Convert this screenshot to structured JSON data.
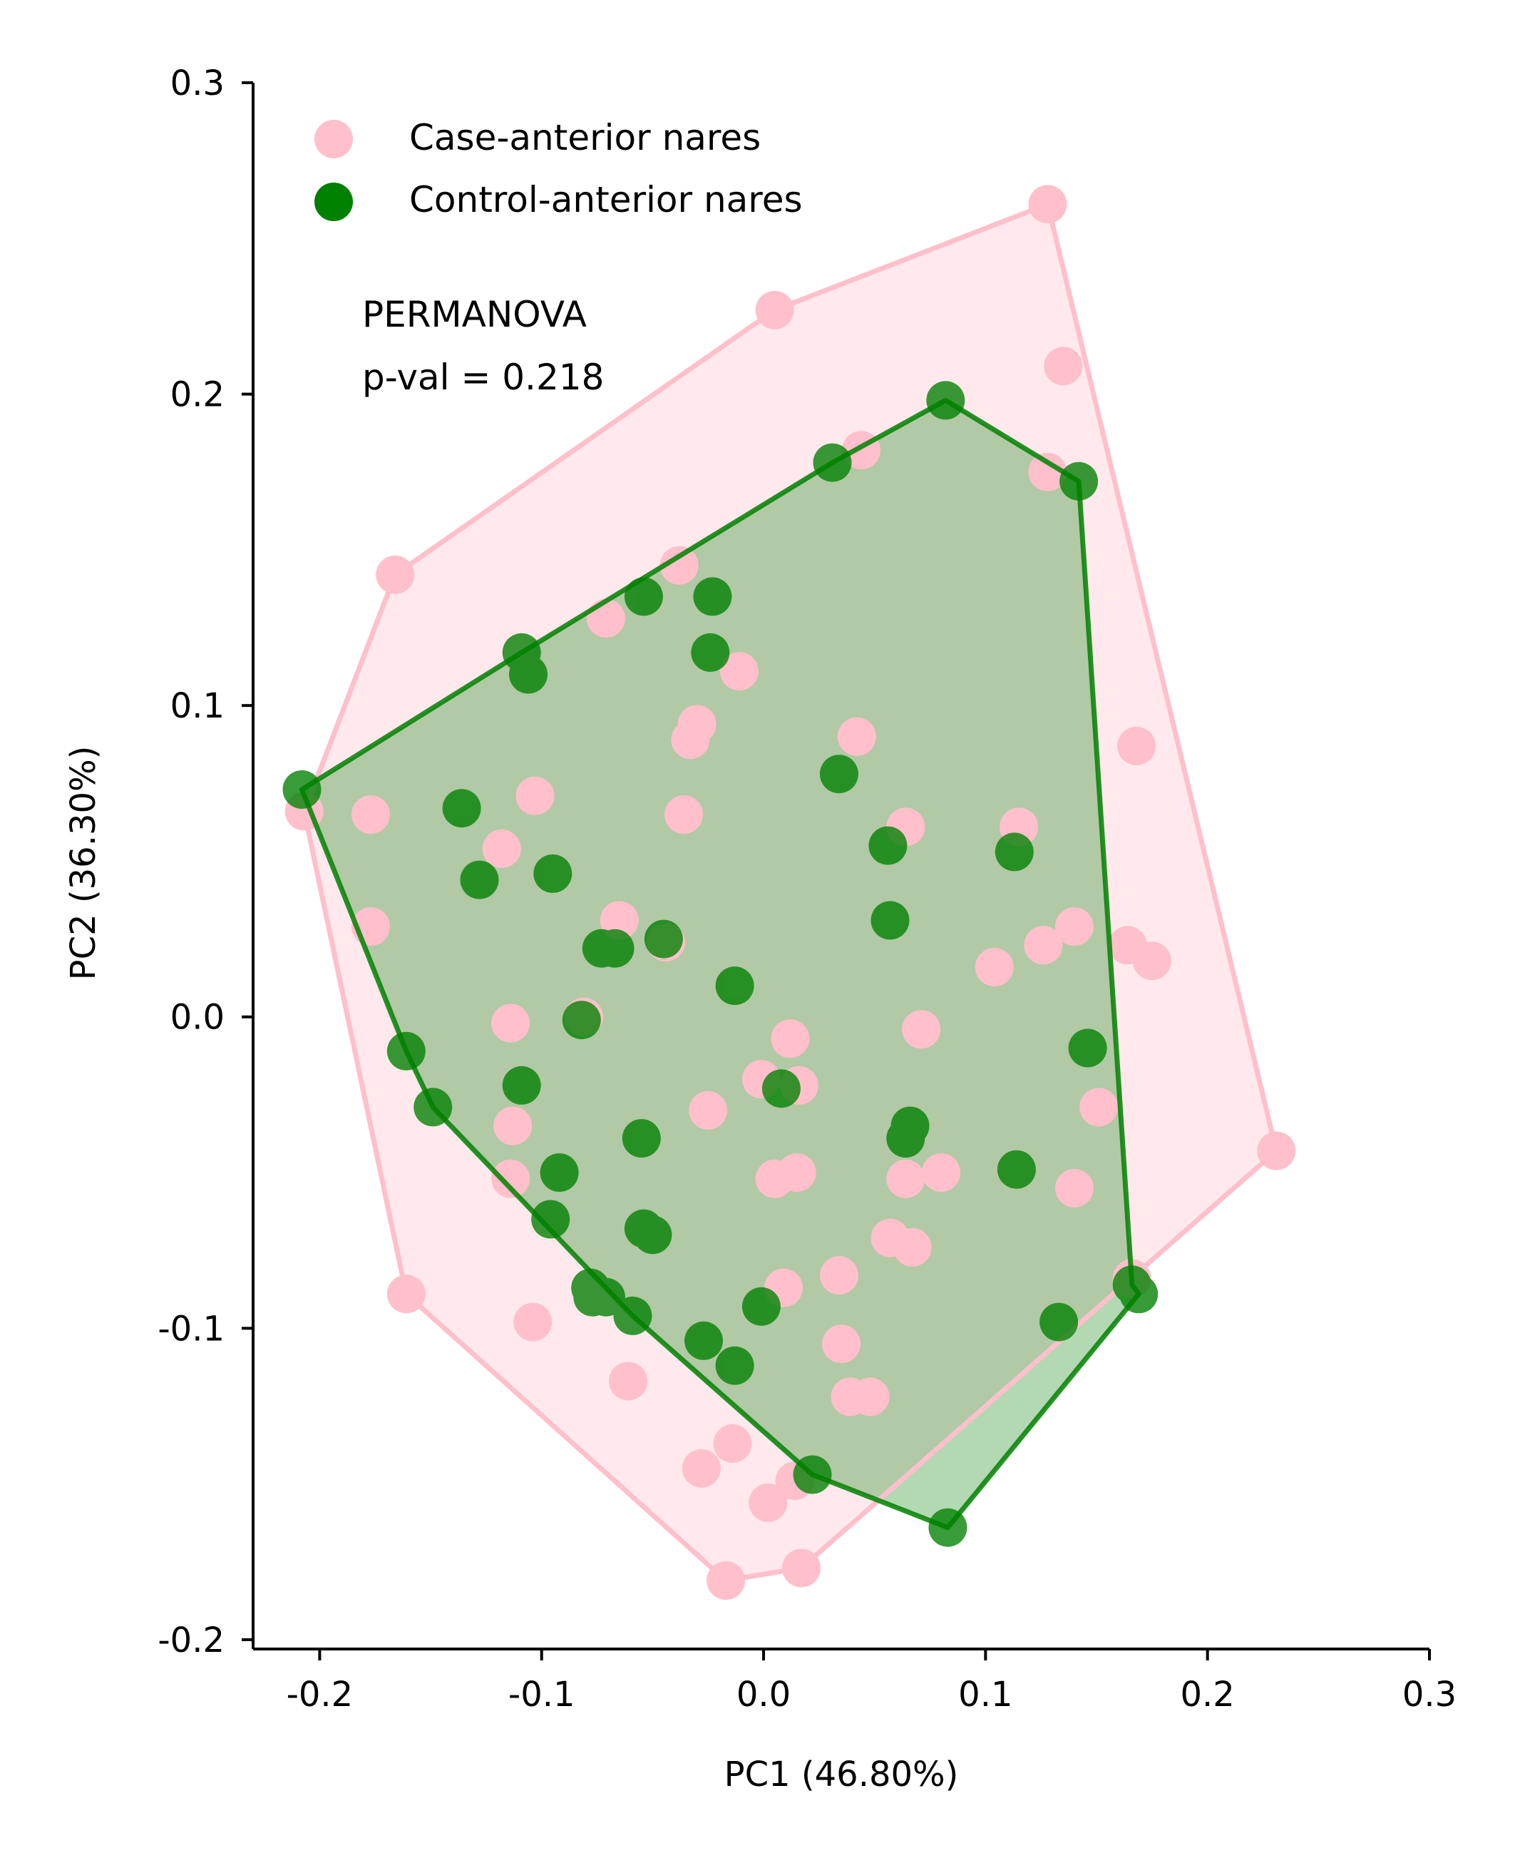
{
  "chart_data": {
    "type": "scatter",
    "xlabel": "PC1 (46.80%)",
    "ylabel": "PC2 (36.30%)",
    "xlim": [
      -0.23,
      0.3
    ],
    "ylim": [
      -0.203,
      0.3
    ],
    "xticks": [
      -0.2,
      -0.1,
      0.0,
      0.1,
      0.2,
      0.3
    ],
    "xtick_labels": [
      "-0.2",
      "-0.1",
      "0.0",
      "0.1",
      "0.2",
      "0.3"
    ],
    "yticks": [
      -0.2,
      -0.1,
      0.0,
      0.1,
      0.2,
      0.3
    ],
    "ytick_labels": [
      "-0.2",
      "-0.1",
      "0.0",
      "0.1",
      "0.2",
      "0.3"
    ],
    "legend_position": "top-left",
    "grid": false,
    "annotation": [
      "PERMANOVA",
      "p-val = 0.218"
    ],
    "series": [
      {
        "name": "Case-anterior nares",
        "color": "#FFC0CB",
        "hull_fill": "#FFC0CB",
        "hull_fill_opacity": 0.35,
        "points": [
          [
            0.128,
            0.261
          ],
          [
            0.005,
            0.227
          ],
          [
            0.135,
            0.209
          ],
          [
            -0.166,
            0.142
          ],
          [
            0.044,
            0.182
          ],
          [
            0.128,
            0.175
          ],
          [
            -0.038,
            0.145
          ],
          [
            -0.071,
            0.128
          ],
          [
            -0.011,
            0.111
          ],
          [
            -0.03,
            0.094
          ],
          [
            -0.033,
            0.089
          ],
          [
            0.042,
            0.09
          ],
          [
            0.168,
            0.087
          ],
          [
            -0.103,
            0.071
          ],
          [
            -0.207,
            0.066
          ],
          [
            -0.177,
            0.065
          ],
          [
            -0.036,
            0.065
          ],
          [
            0.064,
            0.061
          ],
          [
            0.115,
            0.061
          ],
          [
            -0.118,
            0.054
          ],
          [
            -0.177,
            0.029
          ],
          [
            -0.065,
            0.031
          ],
          [
            0.14,
            0.029
          ],
          [
            0.164,
            0.023
          ],
          [
            0.175,
            0.018
          ],
          [
            -0.044,
            0.024
          ],
          [
            0.126,
            0.023
          ],
          [
            0.104,
            0.016
          ],
          [
            -0.114,
            -0.002
          ],
          [
            0.012,
            -0.007
          ],
          [
            0.071,
            -0.004
          ],
          [
            -0.081,
            0.0
          ],
          [
            -0.001,
            -0.02
          ],
          [
            0.016,
            -0.022
          ],
          [
            0.151,
            -0.029
          ],
          [
            -0.025,
            -0.03
          ],
          [
            -0.113,
            -0.035
          ],
          [
            0.231,
            -0.043
          ],
          [
            -0.114,
            -0.052
          ],
          [
            0.005,
            -0.052
          ],
          [
            0.015,
            -0.05
          ],
          [
            0.064,
            -0.052
          ],
          [
            0.08,
            -0.05
          ],
          [
            0.14,
            -0.055
          ],
          [
            0.057,
            -0.071
          ],
          [
            0.067,
            -0.074
          ],
          [
            0.009,
            -0.087
          ],
          [
            0.034,
            -0.083
          ],
          [
            -0.161,
            -0.089
          ],
          [
            -0.104,
            -0.098
          ],
          [
            0.035,
            -0.105
          ],
          [
            -0.061,
            -0.117
          ],
          [
            0.039,
            -0.122
          ],
          [
            0.048,
            -0.122
          ],
          [
            -0.014,
            -0.137
          ],
          [
            -0.028,
            -0.145
          ],
          [
            0.014,
            -0.149
          ],
          [
            0.002,
            -0.156
          ],
          [
            -0.017,
            -0.181
          ],
          [
            0.017,
            -0.177
          ],
          [
            0.166,
            -0.084
          ]
        ],
        "hull": [
          [
            0.128,
            0.261
          ],
          [
            0.231,
            -0.043
          ],
          [
            0.017,
            -0.177
          ],
          [
            -0.017,
            -0.181
          ],
          [
            -0.161,
            -0.089
          ],
          [
            -0.207,
            0.066
          ],
          [
            -0.166,
            0.142
          ],
          [
            0.005,
            0.227
          ]
        ]
      },
      {
        "name": "Control-anterior nares",
        "color": "#008000",
        "hull_fill": "#008000",
        "hull_fill_opacity": 0.3,
        "points": [
          [
            0.082,
            0.198
          ],
          [
            0.031,
            0.178
          ],
          [
            0.142,
            0.172
          ],
          [
            -0.054,
            0.135
          ],
          [
            -0.023,
            0.135
          ],
          [
            -0.024,
            0.117
          ],
          [
            -0.109,
            0.117
          ],
          [
            -0.106,
            0.11
          ],
          [
            -0.208,
            0.073
          ],
          [
            0.034,
            0.078
          ],
          [
            -0.136,
            0.067
          ],
          [
            -0.128,
            0.044
          ],
          [
            -0.095,
            0.046
          ],
          [
            0.056,
            0.055
          ],
          [
            0.113,
            0.053
          ],
          [
            -0.073,
            0.022
          ],
          [
            -0.067,
            0.022
          ],
          [
            0.057,
            0.031
          ],
          [
            -0.045,
            0.025
          ],
          [
            -0.013,
            0.01
          ],
          [
            -0.082,
            -0.001
          ],
          [
            -0.161,
            -0.011
          ],
          [
            0.146,
            -0.01
          ],
          [
            -0.109,
            -0.022
          ],
          [
            0.008,
            -0.023
          ],
          [
            -0.149,
            -0.029
          ],
          [
            0.066,
            -0.035
          ],
          [
            0.064,
            -0.039
          ],
          [
            -0.055,
            -0.039
          ],
          [
            -0.092,
            -0.05
          ],
          [
            0.114,
            -0.049
          ],
          [
            -0.096,
            -0.065
          ],
          [
            -0.054,
            -0.068
          ],
          [
            -0.05,
            -0.07
          ],
          [
            -0.078,
            -0.087
          ],
          [
            -0.077,
            -0.09
          ],
          [
            -0.071,
            -0.09
          ],
          [
            -0.059,
            -0.096
          ],
          [
            0.133,
            -0.098
          ],
          [
            -0.027,
            -0.104
          ],
          [
            -0.013,
            -0.112
          ],
          [
            -0.001,
            -0.093
          ],
          [
            0.166,
            -0.086
          ],
          [
            0.169,
            -0.089
          ],
          [
            0.022,
            -0.147
          ],
          [
            0.083,
            -0.164
          ]
        ],
        "hull": [
          [
            0.082,
            0.198
          ],
          [
            0.142,
            0.172
          ],
          [
            0.166,
            -0.086
          ],
          [
            0.169,
            -0.089
          ],
          [
            0.083,
            -0.164
          ],
          [
            0.022,
            -0.147
          ],
          [
            -0.059,
            -0.096
          ],
          [
            -0.149,
            -0.029
          ],
          [
            -0.161,
            -0.011
          ],
          [
            -0.208,
            0.073
          ],
          [
            -0.109,
            0.117
          ],
          [
            0.031,
            0.178
          ]
        ]
      }
    ]
  }
}
